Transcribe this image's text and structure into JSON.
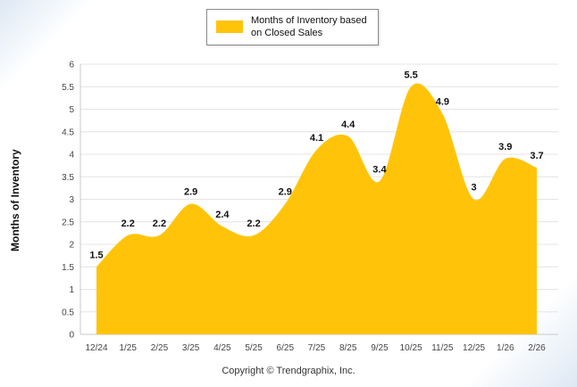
{
  "legend": {
    "label_line1": "Months of Inventory based",
    "label_line2": "on Closed Sales",
    "swatch_color": "#FFC40A"
  },
  "ylabel": "Months of Inventory",
  "footer": "Copyright © Trendgraphix, Inc.",
  "chart_data": {
    "type": "area",
    "title": "Months of Inventory based on Closed Sales",
    "categories": [
      "12/24",
      "1/25",
      "2/25",
      "3/25",
      "4/25",
      "5/25",
      "6/25",
      "7/25",
      "8/25",
      "9/25",
      "10/25",
      "11/25",
      "12/25",
      "1/26",
      "2/26"
    ],
    "values": [
      1.5,
      2.2,
      2.2,
      2.9,
      2.4,
      2.2,
      2.9,
      4.1,
      4.4,
      3.4,
      5.5,
      4.9,
      3,
      3.9,
      3.7
    ],
    "xlabel": "",
    "ylabel": "Months of Inventory",
    "ylim": [
      0,
      6
    ],
    "ytick_step": 0.5,
    "fill_color": "#FFC40A",
    "grid": true,
    "legend_position": "top",
    "data_labels": true
  }
}
